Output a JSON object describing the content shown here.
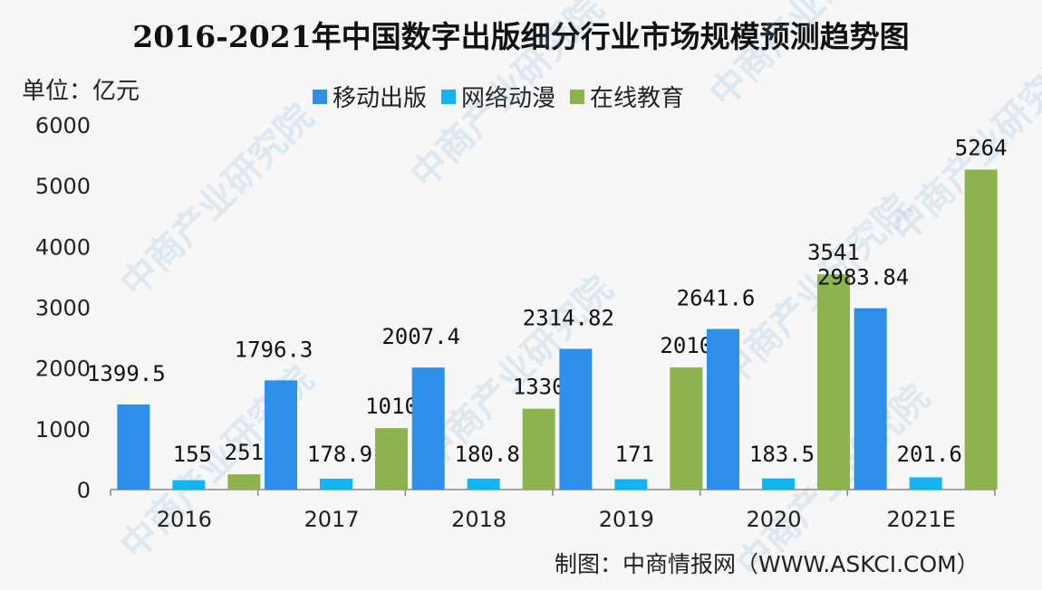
{
  "chart_data": {
    "type": "bar",
    "title": "2016-2021年中国数字出版细分行业市场规模预测趋势图",
    "unit_label": "单位：亿元",
    "categories": [
      "2016",
      "2017",
      "2018",
      "2019",
      "2020",
      "2021E"
    ],
    "series": [
      {
        "name": "移动出版",
        "color": "#2e8fe8",
        "values": [
          1399.5,
          1796.3,
          2007.4,
          2314.82,
          2641.6,
          2983.84
        ],
        "labels": [
          "1399.5",
          "1796.3",
          "2007.4",
          "2314.82",
          "2641.6",
          "2983.84"
        ]
      },
      {
        "name": "网络动漫",
        "color": "#15b4f0",
        "values": [
          155,
          178.9,
          180.8,
          171,
          183.5,
          201.6
        ],
        "labels": [
          "155",
          "178.9",
          "180.8",
          "171",
          "183.5",
          "201.6"
        ]
      },
      {
        "name": "在线教育",
        "color": "#8db34f",
        "values": [
          251,
          1010,
          1330,
          2010,
          3541,
          5264
        ],
        "labels": [
          "251",
          "1010",
          "1330",
          "2010",
          "3541",
          "5264"
        ]
      }
    ],
    "ylim": [
      0,
      6000
    ],
    "yticks": [
      0,
      1000,
      2000,
      3000,
      4000,
      5000,
      6000
    ],
    "grid": false,
    "legend_position": "top"
  },
  "credit": "制图：中商情报网（WWW.ASKCI.COM）",
  "watermark": "中商产业研究院"
}
